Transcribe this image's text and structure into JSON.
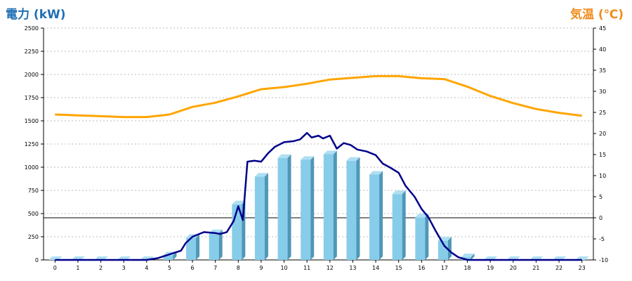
{
  "chart_data": {
    "type": "bar",
    "left_axis_title": "電力 (kW)",
    "right_axis_title": "気温 (℃)",
    "colors": {
      "left_title": "#1f6fb3",
      "right_title": "#f08c1e",
      "bar_face": "#87cde9",
      "bar_side": "#4f97b8",
      "bar_top": "#aedff2",
      "power_line": "#00008b",
      "temp_line": "#ffa500",
      "grid": "#bbbbbb"
    },
    "x_ticks": [
      "0",
      "1",
      "2",
      "3",
      "4",
      "5",
      "6",
      "7",
      "8",
      "9",
      "10",
      "11",
      "12",
      "13",
      "14",
      "15",
      "16",
      "17",
      "18",
      "19",
      "20",
      "21",
      "22",
      "23"
    ],
    "y_left": {
      "min": 0,
      "max": 2500,
      "ticks": [
        "0",
        "250",
        "500",
        "750",
        "1000",
        "1250",
        "1500",
        "1750",
        "2000",
        "2250",
        "2500"
      ]
    },
    "y_right": {
      "min": -10,
      "max": 45,
      "ticks": [
        "-10",
        "-5",
        "0",
        "5",
        "10",
        "15",
        "20",
        "25",
        "30",
        "35",
        "40",
        "45"
      ]
    },
    "bars": {
      "name": "",
      "values": [
        0,
        0,
        0,
        0,
        0,
        50,
        240,
        290,
        600,
        900,
        1100,
        1080,
        1140,
        1070,
        920,
        710,
        460,
        210,
        30,
        0,
        0,
        0,
        0,
        0
      ]
    },
    "power_line": {
      "x": [
        0,
        1,
        2,
        3,
        4,
        4.5,
        5,
        5.5,
        5.7,
        6,
        6.5,
        7,
        7.2,
        7.5,
        7.8,
        8,
        8.2,
        8.4,
        8.7,
        9,
        9.3,
        9.6,
        10,
        10.4,
        10.7,
        11,
        11.2,
        11.5,
        11.7,
        12,
        12.3,
        12.6,
        12.9,
        13.2,
        13.6,
        14,
        14.3,
        14.6,
        15,
        15.3,
        15.7,
        16,
        16.3,
        16.6,
        17,
        17.3,
        17.6,
        18,
        19,
        20,
        21,
        22,
        23
      ],
      "y": [
        0,
        0,
        0,
        0,
        0,
        20,
        60,
        100,
        180,
        250,
        300,
        290,
        280,
        300,
        420,
        580,
        430,
        1060,
        1070,
        1060,
        1150,
        1220,
        1270,
        1280,
        1300,
        1370,
        1320,
        1340,
        1310,
        1340,
        1200,
        1260,
        1240,
        1190,
        1170,
        1130,
        1040,
        1000,
        940,
        800,
        680,
        550,
        460,
        320,
        150,
        80,
        30,
        0,
        0,
        0,
        0,
        0,
        0
      ]
    },
    "temperature_line": {
      "x": [
        0,
        1,
        2,
        3,
        4,
        5,
        6,
        7,
        8,
        9,
        10,
        11,
        12,
        13,
        14,
        15,
        16,
        17,
        18,
        19,
        20,
        21,
        22,
        23
      ],
      "y": [
        24.5,
        24.3,
        24.1,
        23.9,
        23.9,
        24.5,
        26.3,
        27.3,
        28.8,
        30.5,
        31.0,
        31.8,
        32.8,
        33.2,
        33.6,
        33.6,
        33.1,
        32.9,
        31.1,
        28.9,
        27.2,
        25.8,
        24.9,
        24.2
      ]
    },
    "grid": true,
    "legend": "none"
  }
}
